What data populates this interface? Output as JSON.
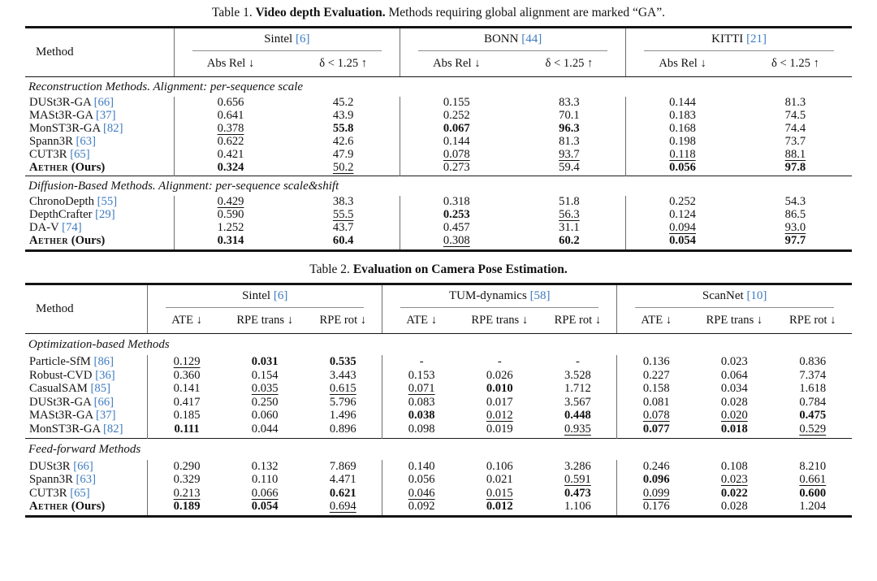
{
  "colors": {
    "cite_blue": "#3d7bbf",
    "rule_dark": "#141414",
    "divider_gray": "#6e6e6e"
  },
  "table1": {
    "caption_prefix": "Table 1.",
    "caption_bold": "Video depth Evaluation.",
    "caption_rest": "Methods requiring global alignment are marked “GA”.",
    "method_col_label": "Method",
    "datasets": [
      {
        "name": "Sintel",
        "cite": "[6]"
      },
      {
        "name": "BONN",
        "cite": "[44]"
      },
      {
        "name": "KITTI",
        "cite": "[21]"
      }
    ],
    "metric_labels": [
      "Abs Rel ↓",
      "δ < 1.25 ↑"
    ],
    "sections": [
      {
        "label": "Reconstruction Methods. Alignment: per-sequence scale",
        "rows": [
          {
            "method": "DUSt3R-GA",
            "cite": "[66]",
            "ours": false,
            "cells": [
              {
                "v": "0.656",
                "s": ""
              },
              {
                "v": "45.2",
                "s": ""
              },
              {
                "v": "0.155",
                "s": ""
              },
              {
                "v": "83.3",
                "s": ""
              },
              {
                "v": "0.144",
                "s": ""
              },
              {
                "v": "81.3",
                "s": ""
              }
            ]
          },
          {
            "method": "MASt3R-GA",
            "cite": "[37]",
            "ours": false,
            "cells": [
              {
                "v": "0.641",
                "s": ""
              },
              {
                "v": "43.9",
                "s": ""
              },
              {
                "v": "0.252",
                "s": ""
              },
              {
                "v": "70.1",
                "s": ""
              },
              {
                "v": "0.183",
                "s": ""
              },
              {
                "v": "74.5",
                "s": ""
              }
            ]
          },
          {
            "method": "MonST3R-GA",
            "cite": "[82]",
            "ours": false,
            "cells": [
              {
                "v": "0.378",
                "s": "u"
              },
              {
                "v": "55.8",
                "s": "b"
              },
              {
                "v": "0.067",
                "s": "b"
              },
              {
                "v": "96.3",
                "s": "b"
              },
              {
                "v": "0.168",
                "s": ""
              },
              {
                "v": "74.4",
                "s": ""
              }
            ]
          },
          {
            "method": "Spann3R",
            "cite": "[63]",
            "ours": false,
            "cells": [
              {
                "v": "0.622",
                "s": ""
              },
              {
                "v": "42.6",
                "s": ""
              },
              {
                "v": "0.144",
                "s": ""
              },
              {
                "v": "81.3",
                "s": ""
              },
              {
                "v": "0.198",
                "s": ""
              },
              {
                "v": "73.7",
                "s": ""
              }
            ]
          },
          {
            "method": "CUT3R",
            "cite": "[65]",
            "ours": false,
            "cells": [
              {
                "v": "0.421",
                "s": ""
              },
              {
                "v": "47.9",
                "s": ""
              },
              {
                "v": "0.078",
                "s": "u"
              },
              {
                "v": "93.7",
                "s": "u"
              },
              {
                "v": "0.118",
                "s": "u"
              },
              {
                "v": "88.1",
                "s": "u"
              }
            ]
          },
          {
            "method": "Aether",
            "ours_suffix": "(Ours)",
            "cite": "",
            "ours": true,
            "cells": [
              {
                "v": "0.324",
                "s": "b"
              },
              {
                "v": "50.2",
                "s": "u"
              },
              {
                "v": "0.273",
                "s": ""
              },
              {
                "v": "59.4",
                "s": ""
              },
              {
                "v": "0.056",
                "s": "b"
              },
              {
                "v": "97.8",
                "s": "b"
              }
            ]
          }
        ]
      },
      {
        "label": "Diffusion-Based Methods. Alignment: per-sequence scale&shift",
        "rows": [
          {
            "method": "ChronoDepth",
            "cite": "[55]",
            "ours": false,
            "cells": [
              {
                "v": "0.429",
                "s": "u"
              },
              {
                "v": "38.3",
                "s": ""
              },
              {
                "v": "0.318",
                "s": ""
              },
              {
                "v": "51.8",
                "s": ""
              },
              {
                "v": "0.252",
                "s": ""
              },
              {
                "v": "54.3",
                "s": ""
              }
            ]
          },
          {
            "method": "DepthCrafter",
            "cite": "[29]",
            "ours": false,
            "cells": [
              {
                "v": "0.590",
                "s": ""
              },
              {
                "v": "55.5",
                "s": "u"
              },
              {
                "v": "0.253",
                "s": "b"
              },
              {
                "v": "56.3",
                "s": "u"
              },
              {
                "v": "0.124",
                "s": ""
              },
              {
                "v": "86.5",
                "s": ""
              }
            ]
          },
          {
            "method": "DA-V",
            "cite": "[74]",
            "ours": false,
            "cells": [
              {
                "v": "1.252",
                "s": ""
              },
              {
                "v": "43.7",
                "s": ""
              },
              {
                "v": "0.457",
                "s": ""
              },
              {
                "v": "31.1",
                "s": ""
              },
              {
                "v": "0.094",
                "s": "u"
              },
              {
                "v": "93.0",
                "s": "u"
              }
            ]
          },
          {
            "method": "Aether",
            "ours_suffix": "(Ours)",
            "cite": "",
            "ours": true,
            "cells": [
              {
                "v": "0.314",
                "s": "b"
              },
              {
                "v": "60.4",
                "s": "b"
              },
              {
                "v": "0.308",
                "s": "u"
              },
              {
                "v": "60.2",
                "s": "b"
              },
              {
                "v": "0.054",
                "s": "b"
              },
              {
                "v": "97.7",
                "s": "b"
              }
            ]
          }
        ]
      }
    ]
  },
  "table2": {
    "caption_prefix": "Table 2.",
    "caption_bold": "Evaluation on Camera Pose Estimation.",
    "caption_rest": "",
    "method_col_label": "Method",
    "datasets": [
      {
        "name": "Sintel",
        "cite": "[6]"
      },
      {
        "name": "TUM-dynamics",
        "cite": "[58]"
      },
      {
        "name": "ScanNet",
        "cite": "[10]"
      }
    ],
    "metric_labels": [
      "ATE ↓",
      "RPE trans ↓",
      "RPE rot ↓"
    ],
    "sections": [
      {
        "label": "Optimization-based Methods",
        "rows": [
          {
            "method": "Particle-SfM",
            "cite": "[86]",
            "ours": false,
            "cells": [
              {
                "v": "0.129",
                "s": "u"
              },
              {
                "v": "0.031",
                "s": "b"
              },
              {
                "v": "0.535",
                "s": "b"
              },
              {
                "v": "-",
                "s": ""
              },
              {
                "v": "-",
                "s": ""
              },
              {
                "v": "-",
                "s": ""
              },
              {
                "v": "0.136",
                "s": ""
              },
              {
                "v": "0.023",
                "s": ""
              },
              {
                "v": "0.836",
                "s": ""
              }
            ]
          },
          {
            "method": "Robust-CVD",
            "cite": "[36]",
            "ours": false,
            "cells": [
              {
                "v": "0.360",
                "s": ""
              },
              {
                "v": "0.154",
                "s": ""
              },
              {
                "v": "3.443",
                "s": ""
              },
              {
                "v": "0.153",
                "s": ""
              },
              {
                "v": "0.026",
                "s": ""
              },
              {
                "v": "3.528",
                "s": ""
              },
              {
                "v": "0.227",
                "s": ""
              },
              {
                "v": "0.064",
                "s": ""
              },
              {
                "v": "7.374",
                "s": ""
              }
            ]
          },
          {
            "method": "CasualSAM",
            "cite": "[85]",
            "ours": false,
            "cells": [
              {
                "v": "0.141",
                "s": ""
              },
              {
                "v": "0.035",
                "s": "u"
              },
              {
                "v": "0.615",
                "s": "u"
              },
              {
                "v": "0.071",
                "s": "u"
              },
              {
                "v": "0.010",
                "s": "b"
              },
              {
                "v": "1.712",
                "s": ""
              },
              {
                "v": "0.158",
                "s": ""
              },
              {
                "v": "0.034",
                "s": ""
              },
              {
                "v": "1.618",
                "s": ""
              }
            ]
          },
          {
            "method": "DUSt3R-GA",
            "cite": "[66]",
            "ours": false,
            "cells": [
              {
                "v": "0.417",
                "s": ""
              },
              {
                "v": "0.250",
                "s": ""
              },
              {
                "v": "5.796",
                "s": ""
              },
              {
                "v": "0.083",
                "s": ""
              },
              {
                "v": "0.017",
                "s": ""
              },
              {
                "v": "3.567",
                "s": ""
              },
              {
                "v": "0.081",
                "s": ""
              },
              {
                "v": "0.028",
                "s": ""
              },
              {
                "v": "0.784",
                "s": ""
              }
            ]
          },
          {
            "method": "MASt3R-GA",
            "cite": "[37]",
            "ours": false,
            "cells": [
              {
                "v": "0.185",
                "s": ""
              },
              {
                "v": "0.060",
                "s": ""
              },
              {
                "v": "1.496",
                "s": ""
              },
              {
                "v": "0.038",
                "s": "b"
              },
              {
                "v": "0.012",
                "s": "u"
              },
              {
                "v": "0.448",
                "s": "b"
              },
              {
                "v": "0.078",
                "s": "u"
              },
              {
                "v": "0.020",
                "s": "u"
              },
              {
                "v": "0.475",
                "s": "b"
              }
            ]
          },
          {
            "method": "MonST3R-GA",
            "cite": "[82]",
            "ours": false,
            "cells": [
              {
                "v": "0.111",
                "s": "b"
              },
              {
                "v": "0.044",
                "s": ""
              },
              {
                "v": "0.896",
                "s": ""
              },
              {
                "v": "0.098",
                "s": ""
              },
              {
                "v": "0.019",
                "s": ""
              },
              {
                "v": "0.935",
                "s": "u"
              },
              {
                "v": "0.077",
                "s": "b"
              },
              {
                "v": "0.018",
                "s": "b"
              },
              {
                "v": "0.529",
                "s": "u"
              }
            ]
          }
        ]
      },
      {
        "label": "Feed-forward Methods",
        "rows": [
          {
            "method": "DUSt3R",
            "cite": "[66]",
            "ours": false,
            "cells": [
              {
                "v": "0.290",
                "s": ""
              },
              {
                "v": "0.132",
                "s": ""
              },
              {
                "v": "7.869",
                "s": ""
              },
              {
                "v": "0.140",
                "s": ""
              },
              {
                "v": "0.106",
                "s": ""
              },
              {
                "v": "3.286",
                "s": ""
              },
              {
                "v": "0.246",
                "s": ""
              },
              {
                "v": "0.108",
                "s": ""
              },
              {
                "v": "8.210",
                "s": ""
              }
            ]
          },
          {
            "method": "Spann3R",
            "cite": "[63]",
            "ours": false,
            "cells": [
              {
                "v": "0.329",
                "s": ""
              },
              {
                "v": "0.110",
                "s": ""
              },
              {
                "v": "4.471",
                "s": ""
              },
              {
                "v": "0.056",
                "s": ""
              },
              {
                "v": "0.021",
                "s": ""
              },
              {
                "v": "0.591",
                "s": "u"
              },
              {
                "v": "0.096",
                "s": "b"
              },
              {
                "v": "0.023",
                "s": "u"
              },
              {
                "v": "0.661",
                "s": "u"
              }
            ]
          },
          {
            "method": "CUT3R",
            "cite": "[65]",
            "ours": false,
            "cells": [
              {
                "v": "0.213",
                "s": "u"
              },
              {
                "v": "0.066",
                "s": "u"
              },
              {
                "v": "0.621",
                "s": "b"
              },
              {
                "v": "0.046",
                "s": "u"
              },
              {
                "v": "0.015",
                "s": "u"
              },
              {
                "v": "0.473",
                "s": "b"
              },
              {
                "v": "0.099",
                "s": "u"
              },
              {
                "v": "0.022",
                "s": "b"
              },
              {
                "v": "0.600",
                "s": "b"
              }
            ]
          },
          {
            "method": "Aether",
            "ours_suffix": "(Ours)",
            "cite": "",
            "ours": true,
            "cells": [
              {
                "v": "0.189",
                "s": "b"
              },
              {
                "v": "0.054",
                "s": "b"
              },
              {
                "v": "0.694",
                "s": "u"
              },
              {
                "v": "0.092",
                "s": ""
              },
              {
                "v": "0.012",
                "s": "b"
              },
              {
                "v": "1.106",
                "s": ""
              },
              {
                "v": "0.176",
                "s": ""
              },
              {
                "v": "0.028",
                "s": ""
              },
              {
                "v": "1.204",
                "s": ""
              }
            ]
          }
        ]
      }
    ]
  }
}
